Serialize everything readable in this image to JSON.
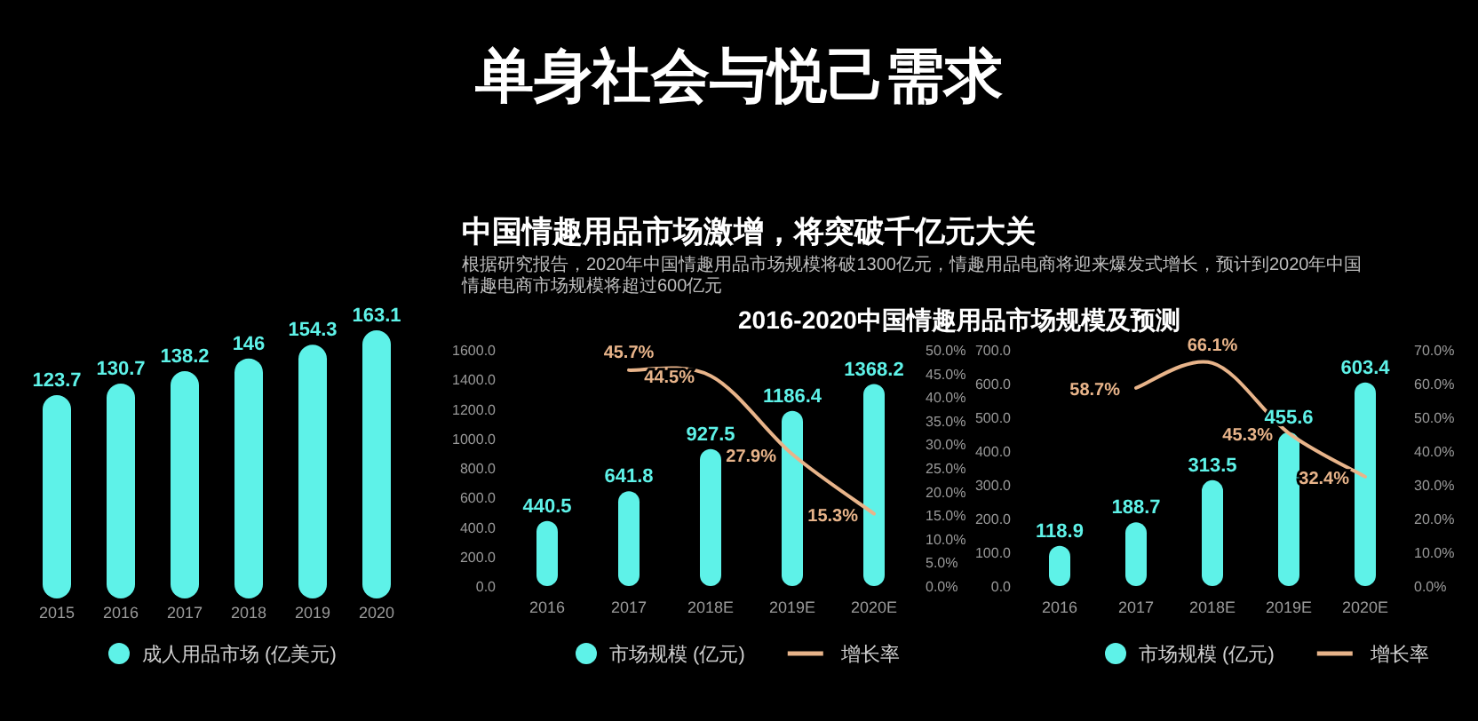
{
  "chart_data": [
    {
      "type": "bar",
      "categories": [
        "2015",
        "2016",
        "2017",
        "2018",
        "2019",
        "2020"
      ],
      "series": [
        {
          "name": "成人用品市场 (亿美元)",
          "color": "#5ef2e8",
          "values": [
            123.7,
            130.7,
            138.2,
            146,
            154.3,
            163.1
          ]
        }
      ],
      "data_labels": true,
      "legend": "bottom",
      "tick_labels": "x"
    },
    {
      "type": "bar",
      "title": "单身社会与悦己需求",
      "subtitle": "2016-2020中国情趣用品市场规模及预测",
      "annotations": [
        "中国情趣用品市场激增，将突破千亿元大关",
        "根据研究报告，2020年中国情趣用品市场规模将破1300亿元，情趣用品电商将迎来爆发式增长，预计到2020年中国情趣电商市场规模将超过600亿元"
      ],
      "categories": [
        "2016",
        "2017",
        "2018E",
        "2019E",
        "2020E"
      ],
      "series": [
        {
          "name": "市场规模 (亿元)",
          "color": "#5ef2e8",
          "values": [
            440.5,
            641.8,
            927.5,
            1186.4,
            1368.2
          ]
        },
        {
          "type": "line",
          "name": "增长率",
          "color": "#e8b48a",
          "axis": "y2",
          "values": [
            null,
            45.7,
            44.5,
            27.9,
            15.3
          ],
          "value_labels": [
            null,
            "45.7%",
            "44.5%",
            "27.9%",
            "15.3%"
          ]
        }
      ],
      "ylim": [
        0,
        1600
      ],
      "yticks": [
        {
          "value": 0,
          "label": "0.0"
        },
        {
          "value": 200,
          "label": "200.0"
        },
        {
          "value": 400,
          "label": "400.0"
        },
        {
          "value": 600,
          "label": "600.0"
        },
        {
          "value": 800,
          "label": "800.0"
        },
        {
          "value": 1000,
          "label": "1000.0"
        },
        {
          "value": 1200,
          "label": "1200.0"
        },
        {
          "value": 1400,
          "label": "1400.0"
        },
        {
          "value": 1600,
          "label": "1600.0"
        }
      ],
      "y2lim": [
        0,
        50
      ],
      "y2ticks": [
        {
          "value": 0,
          "label": "0.0%"
        },
        {
          "value": 5,
          "label": "5.0%"
        },
        {
          "value": 10,
          "label": "10.0%"
        },
        {
          "value": 15,
          "label": "15.0%"
        },
        {
          "value": 20,
          "label": "20.0%"
        },
        {
          "value": 25,
          "label": "25.0%"
        },
        {
          "value": 30,
          "label": "30.0%"
        },
        {
          "value": 35,
          "label": "35.0%"
        },
        {
          "value": 40,
          "label": "40.0%"
        },
        {
          "value": 45,
          "label": "45.0%"
        },
        {
          "value": 50,
          "label": "50.0%"
        }
      ],
      "data_labels": true,
      "legend": "bottom"
    },
    {
      "type": "bar",
      "categories": [
        "2016",
        "2017",
        "2018E",
        "2019E",
        "2020E"
      ],
      "series": [
        {
          "name": "市场规模 (亿元)",
          "color": "#5ef2e8",
          "values": [
            118.9,
            188.7,
            313.5,
            455.6,
            603.4
          ]
        },
        {
          "type": "line",
          "name": "增长率",
          "color": "#e8b48a",
          "axis": "y2",
          "values": [
            null,
            58.7,
            66.1,
            45.3,
            32.4
          ],
          "value_labels": [
            null,
            "58.7%",
            "66.1%",
            "45.3%",
            "32.4%"
          ]
        }
      ],
      "ylim": [
        0,
        700
      ],
      "yticks": [
        {
          "value": 0,
          "label": "0.0"
        },
        {
          "value": 100,
          "label": "100.0"
        },
        {
          "value": 200,
          "label": "200.0"
        },
        {
          "value": 300,
          "label": "300.0"
        },
        {
          "value": 400,
          "label": "400.0"
        },
        {
          "value": 500,
          "label": "500.0"
        },
        {
          "value": 600,
          "label": "600.0"
        },
        {
          "value": 700,
          "label": "700.0"
        }
      ],
      "y2lim": [
        0,
        70
      ],
      "y2ticks": [
        {
          "value": 0,
          "label": "0.0%"
        },
        {
          "value": 10,
          "label": "10.0%"
        },
        {
          "value": 20,
          "label": "20.0%"
        },
        {
          "value": 30,
          "label": "30.0%"
        },
        {
          "value": 40,
          "label": "40.0%"
        },
        {
          "value": 50,
          "label": "50.0%"
        },
        {
          "value": 60,
          "label": "60.0%"
        },
        {
          "value": 70,
          "label": "70.0%"
        }
      ],
      "data_labels": true,
      "legend": "bottom"
    }
  ]
}
